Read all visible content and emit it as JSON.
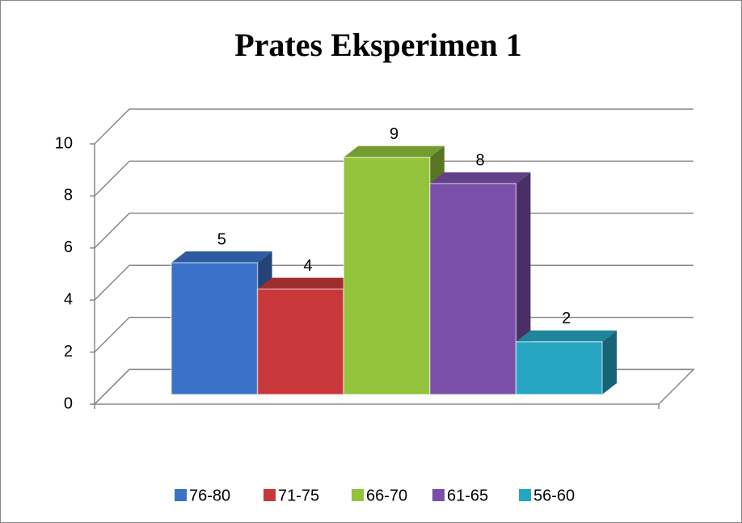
{
  "chart_data": {
    "type": "bar3d",
    "title": "Prates Eksperimen 1",
    "series": [
      {
        "name": "76-80",
        "color": "#3a72c8",
        "values": [
          5
        ]
      },
      {
        "name": "71-75",
        "color": "#c8383a",
        "values": [
          4
        ]
      },
      {
        "name": "66-70",
        "color": "#92c33a",
        "values": [
          9
        ]
      },
      {
        "name": "61-65",
        "color": "#7a4fa8",
        "values": [
          8
        ]
      },
      {
        "name": "56-60",
        "color": "#27a6c4",
        "values": [
          2
        ]
      }
    ],
    "ylim": [
      0,
      10
    ],
    "yticks": [
      0,
      2,
      4,
      6,
      8,
      10
    ],
    "grid": true,
    "legend": "bottom"
  }
}
